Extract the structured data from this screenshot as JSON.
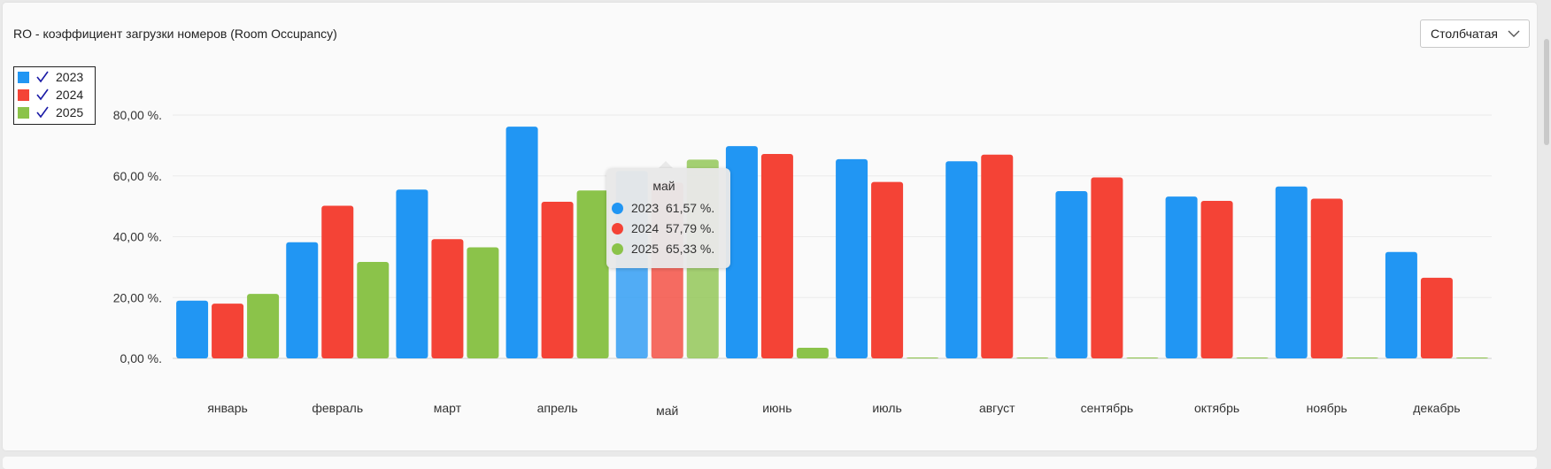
{
  "header": {
    "title": "RO - коэффициент загрузки номеров (Room Occupancy)",
    "chart_type_select": "Столбчатая"
  },
  "legend": {
    "items": [
      {
        "label": "2023",
        "color": "#2196F3",
        "checked": true
      },
      {
        "label": "2024",
        "color": "#F44336",
        "checked": true
      },
      {
        "label": "2025",
        "color": "#8BC34A",
        "checked": true
      }
    ]
  },
  "tooltip": {
    "title": "май",
    "rows": [
      {
        "year": "2023",
        "value": "61,57 %.",
        "color": "#2196F3"
      },
      {
        "year": "2024",
        "value": "57,79 %.",
        "color": "#F44336"
      },
      {
        "year": "2025",
        "value": "65,33 %.",
        "color": "#8BC34A"
      }
    ]
  },
  "chart_data": {
    "type": "bar",
    "title": "RO - коэффициент загрузки номеров (Room Occupancy)",
    "categories": [
      "январь",
      "февраль",
      "март",
      "апрель",
      "май",
      "июнь",
      "июль",
      "август",
      "сентябрь",
      "октябрь",
      "ноябрь",
      "декабрь"
    ],
    "series": [
      {
        "name": "2023",
        "color": "#2196F3",
        "values": [
          19.0,
          38.2,
          55.5,
          76.2,
          61.57,
          69.8,
          65.5,
          64.8,
          55.0,
          53.2,
          56.5,
          35.0
        ]
      },
      {
        "name": "2024",
        "color": "#F44336",
        "values": [
          18.0,
          50.2,
          39.2,
          51.5,
          57.79,
          67.2,
          58.0,
          67.0,
          59.5,
          51.8,
          52.5,
          26.5
        ]
      },
      {
        "name": "2025",
        "color": "#8BC34A",
        "values": [
          21.2,
          31.7,
          36.5,
          55.2,
          65.33,
          3.5,
          0.1,
          0.1,
          0.1,
          0.1,
          0.1,
          0.1
        ]
      }
    ],
    "y_ticks": [
      "0,00 %.",
      "20,00 %.",
      "40,00 %.",
      "60,00 %.",
      "80,00 %."
    ],
    "ylim": [
      0,
      80
    ],
    "highlighted_category": "май",
    "grid": true,
    "legend_position": "top-left"
  }
}
